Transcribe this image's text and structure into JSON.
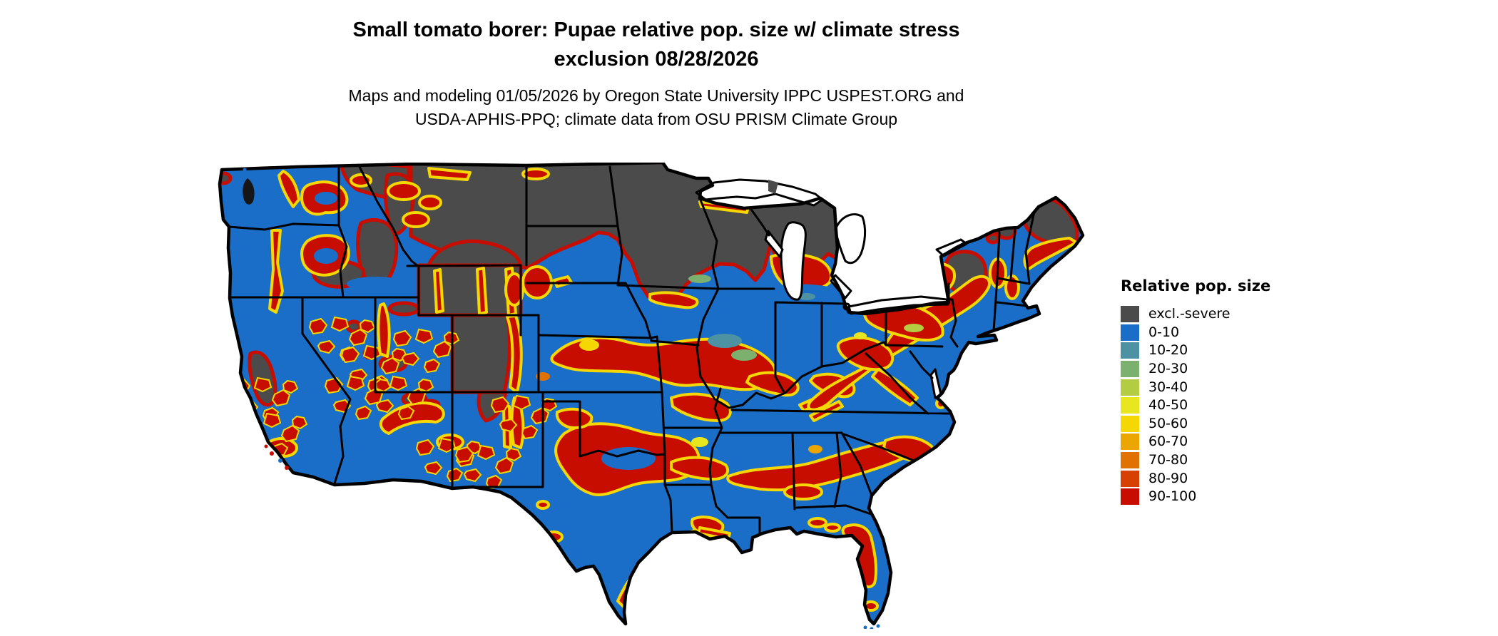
{
  "header": {
    "title_line1": "Small tomato borer: Pupae relative pop. size w/ climate stress",
    "title_line2": "exclusion 08/28/2026",
    "subtitle_line1": "Maps and modeling 01/05/2026 by Oregon State University IPPC USPEST.ORG and",
    "subtitle_line2": "USDA-APHIS-PPQ; climate data from OSU PRISM Climate Group"
  },
  "legend": {
    "title": "Relative pop. size",
    "items": [
      {
        "label": "excl.-severe",
        "color": "#4B4B4B"
      },
      {
        "label": "0-10",
        "color": "#1B6EC8"
      },
      {
        "label": "10-20",
        "color": "#4D92A3"
      },
      {
        "label": "20-30",
        "color": "#7CB06E"
      },
      {
        "label": "30-40",
        "color": "#B3CC42"
      },
      {
        "label": "40-50",
        "color": "#E8E71F"
      },
      {
        "label": "50-60",
        "color": "#F4D703"
      },
      {
        "label": "60-70",
        "color": "#EBA603"
      },
      {
        "label": "70-80",
        "color": "#DF7203"
      },
      {
        "label": "80-90",
        "color": "#D64103"
      },
      {
        "label": "90-100",
        "color": "#C60D00"
      }
    ]
  },
  "colors": {
    "background": "#FFFFFF",
    "border": "#000000",
    "water": "#FFFFFF",
    "excl": "#4B4B4B",
    "v0": "#1B6EC8",
    "v10": "#4D92A3",
    "v20": "#7CB06E",
    "v30": "#B3CC42",
    "v40": "#E8E71F",
    "v50": "#F4D703",
    "v60": "#EBA603",
    "v70": "#DF7203",
    "v80": "#D64103",
    "v90": "#C60D00"
  }
}
